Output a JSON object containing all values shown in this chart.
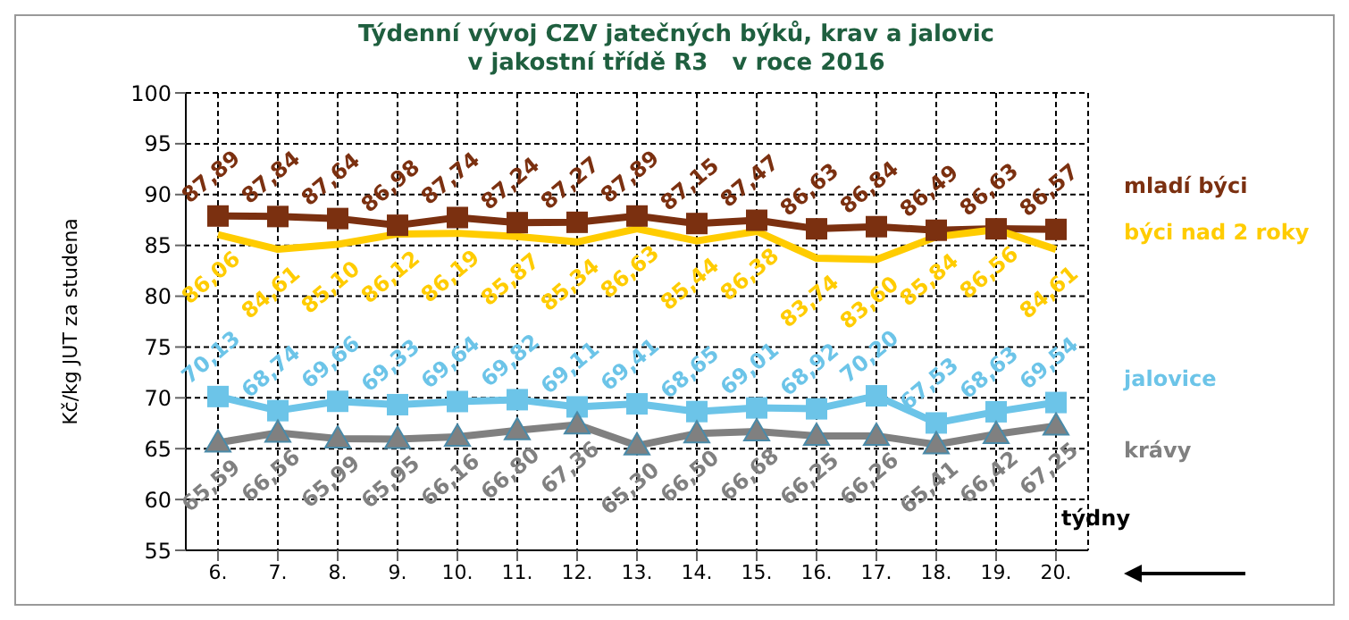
{
  "chart_data": {
    "type": "line",
    "title": "Týdenní vývoj CZV jatečných býků, krav a jalovic\nv jakostní třídě R3   v roce 2016",
    "xlabel": "týdny",
    "ylabel": "Kč/kg JUT za studena",
    "categories": [
      "6.",
      "7.",
      "8.",
      "9.",
      "10.",
      "11.",
      "12.",
      "13.",
      "14.",
      "15.",
      "16.",
      "17.",
      "18.",
      "19.",
      "20."
    ],
    "series": [
      {
        "name": "mladí býci",
        "color": "#7b3010",
        "marker": "square",
        "values": [
          87.89,
          87.84,
          87.64,
          86.98,
          87.74,
          87.24,
          87.27,
          87.89,
          87.15,
          87.47,
          86.63,
          86.84,
          86.49,
          86.63,
          86.57
        ],
        "value_labels": [
          "87,89",
          "87,84",
          "87,64",
          "86,98",
          "87,74",
          "87,24",
          "87,27",
          "87,89",
          "87,15",
          "87,47",
          "86,63",
          "86,84",
          "86,49",
          "86,63",
          "86,57"
        ]
      },
      {
        "name": "býci nad 2 roky",
        "color": "#ffcc00",
        "marker": "none",
        "values": [
          86.06,
          84.61,
          85.1,
          86.12,
          86.19,
          85.87,
          85.34,
          86.63,
          85.44,
          86.38,
          83.74,
          83.6,
          85.84,
          86.56,
          84.61
        ],
        "value_labels": [
          "86,06",
          "84,61",
          "85,10",
          "86,12",
          "86,19",
          "85,87",
          "85,34",
          "86,63",
          "85,44",
          "86,38",
          "83,74",
          "83,60",
          "85,84",
          "86,56",
          "84,61"
        ]
      },
      {
        "name": "jalovice",
        "color": "#6cc4e8",
        "marker": "square",
        "values": [
          70.13,
          68.74,
          69.66,
          69.33,
          69.64,
          69.82,
          69.11,
          69.41,
          68.65,
          69.01,
          68.92,
          70.2,
          67.53,
          68.63,
          69.54
        ],
        "value_labels": [
          "70,13",
          "68,74",
          "69,66",
          "69,33",
          "69,64",
          "69,82",
          "69,11",
          "69,41",
          "68,65",
          "69,01",
          "68,92",
          "70,20",
          "67,53",
          "68,63",
          "69,54"
        ]
      },
      {
        "name": "krávy",
        "color": "#808080",
        "marker": "triangle",
        "values": [
          65.59,
          66.56,
          65.99,
          65.95,
          66.16,
          66.8,
          67.36,
          65.3,
          66.5,
          66.68,
          66.25,
          66.26,
          65.41,
          66.42,
          67.25
        ],
        "value_labels": [
          "65,59",
          "66,56",
          "65,99",
          "65,95",
          "66,16",
          "66,80",
          "67,36",
          "65,30",
          "66,50",
          "66,68",
          "66,25",
          "66,26",
          "65,41",
          "66,42",
          "67,25"
        ]
      }
    ],
    "ylim": [
      55,
      100
    ],
    "yticks": [
      55,
      60,
      65,
      70,
      75,
      80,
      85,
      90,
      95,
      100
    ],
    "grid": true,
    "line_style": "solid",
    "legend": "right"
  }
}
